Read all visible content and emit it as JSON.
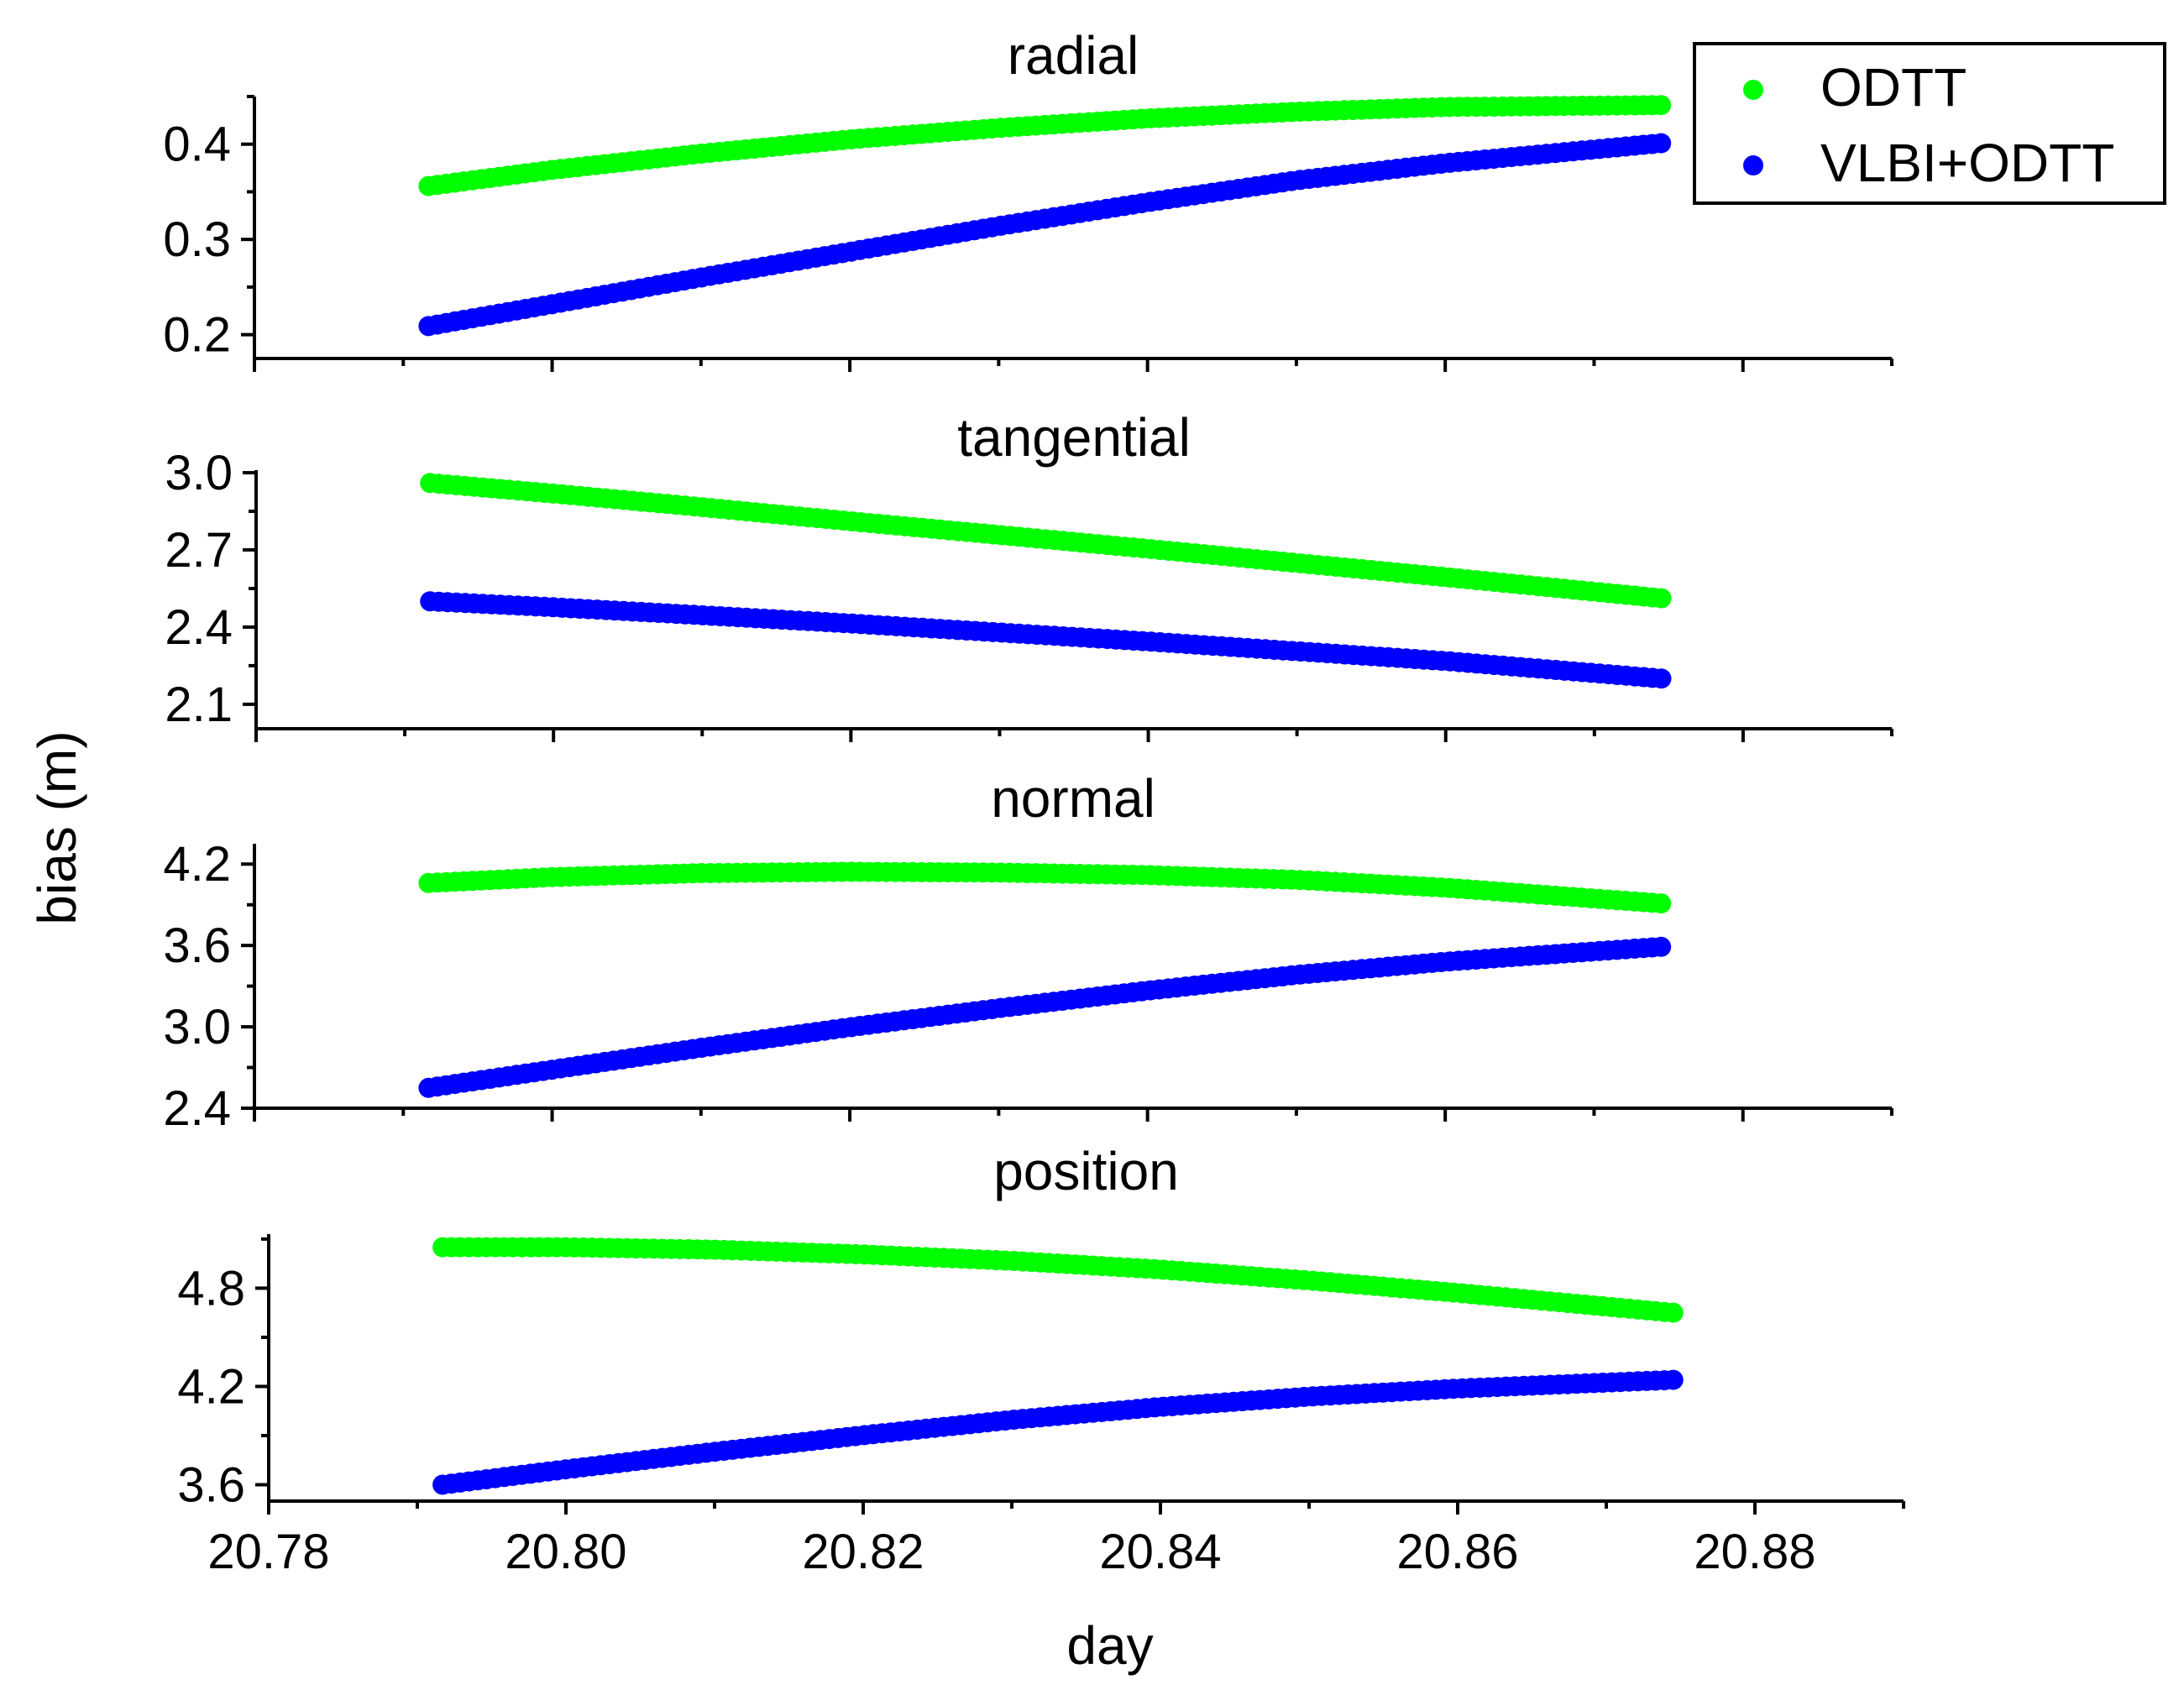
{
  "figure": {
    "ylabel": "bias (m)",
    "xlabel": "day"
  },
  "legend": {
    "items": [
      {
        "label": "ODTT",
        "color": "#00ff00"
      },
      {
        "label": "VLBI+ODTT",
        "color": "#0000ff"
      }
    ]
  },
  "chart_data": [
    {
      "type": "scatter",
      "title": "radial",
      "xlim": [
        20.78,
        20.89
      ],
      "ylim": [
        0.175,
        0.45
      ],
      "yticks": [
        0.2,
        0.3,
        0.4
      ],
      "ytick_labels": [
        "0.2",
        "0.3",
        "0.4"
      ],
      "x": [
        20.7917,
        20.8,
        20.81,
        20.82,
        20.83,
        20.84,
        20.85,
        20.86,
        20.8745
      ],
      "series": [
        {
          "name": "ODTT",
          "values": [
            0.356,
            0.373,
            0.39,
            0.405,
            0.417,
            0.427,
            0.434,
            0.439,
            0.441
          ]
        },
        {
          "name": "VLBI+ODTT",
          "values": [
            0.209,
            0.232,
            0.26,
            0.287,
            0.314,
            0.339,
            0.362,
            0.38,
            0.401
          ]
        }
      ]
    },
    {
      "type": "scatter",
      "title": "tangential",
      "xlim": [
        20.78,
        20.89
      ],
      "ylim": [
        2.005,
        3.01
      ],
      "yticks": [
        2.1,
        2.4,
        2.7,
        3.0
      ],
      "ytick_labels": [
        "2.1",
        "2.4",
        "2.7",
        "3.0"
      ],
      "x": [
        20.7917,
        20.8,
        20.81,
        20.82,
        20.83,
        20.84,
        20.85,
        20.86,
        20.8745
      ],
      "series": [
        {
          "name": "ODTT",
          "values": [
            2.96,
            2.919,
            2.866,
            2.811,
            2.758,
            2.704,
            2.649,
            2.594,
            2.512
          ]
        },
        {
          "name": "VLBI+ODTT",
          "values": [
            2.5,
            2.477,
            2.446,
            2.414,
            2.379,
            2.344,
            2.306,
            2.268,
            2.2
          ]
        }
      ]
    },
    {
      "type": "scatter",
      "title": "normal",
      "xlim": [
        20.78,
        20.89
      ],
      "ylim": [
        2.4,
        4.35
      ],
      "yticks": [
        2.4,
        3.0,
        3.6,
        4.2
      ],
      "ytick_labels": [
        "2.4",
        "3.0",
        "3.6",
        "4.2"
      ],
      "x": [
        20.7917,
        20.8,
        20.81,
        20.82,
        20.83,
        20.84,
        20.85,
        20.86,
        20.8745
      ],
      "series": [
        {
          "name": "ODTT",
          "values": [
            4.06,
            4.104,
            4.133,
            4.143,
            4.137,
            4.119,
            4.084,
            4.026,
            3.91
          ]
        },
        {
          "name": "VLBI+ODTT",
          "values": [
            2.55,
            2.684,
            2.845,
            2.997,
            3.137,
            3.267,
            3.383,
            3.48,
            3.59
          ]
        }
      ]
    },
    {
      "type": "scatter",
      "title": "position",
      "xlim": [
        20.78,
        20.89
      ],
      "ylim": [
        3.5,
        5.13
      ],
      "yticks": [
        3.6,
        4.2,
        4.8
      ],
      "ytick_labels": [
        "3.6",
        "4.2",
        "4.8"
      ],
      "xticks": [
        20.78,
        20.8,
        20.82,
        20.84,
        20.86,
        20.88
      ],
      "xtick_labels": [
        "20.78",
        "20.80",
        "20.82",
        "20.84",
        "20.86",
        "20.88"
      ],
      "x": [
        20.7917,
        20.8,
        20.81,
        20.82,
        20.83,
        20.84,
        20.85,
        20.86,
        20.8745
      ],
      "series": [
        {
          "name": "ODTT",
          "values": [
            5.05,
            5.05,
            5.035,
            5.006,
            4.967,
            4.914,
            4.847,
            4.771,
            4.65
          ]
        },
        {
          "name": "VLBI+ODTT",
          "values": [
            3.6,
            3.694,
            3.801,
            3.902,
            3.996,
            4.075,
            4.138,
            4.187,
            4.24
          ]
        }
      ]
    }
  ]
}
